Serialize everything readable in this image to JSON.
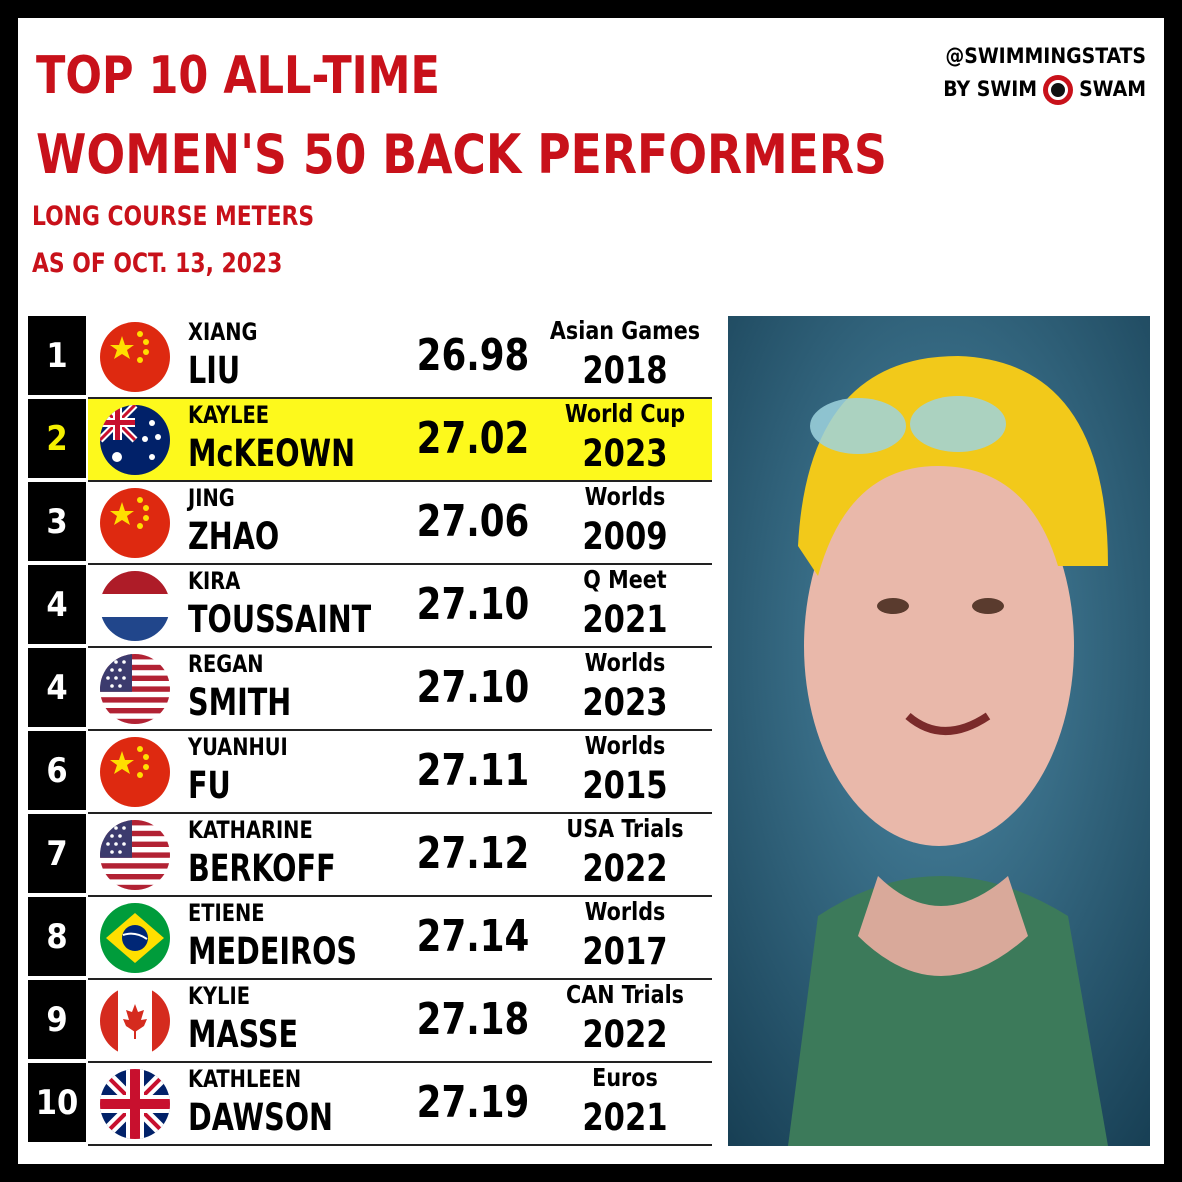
{
  "header": {
    "title_line1": "TOP 10 ALL-TIME",
    "title_line2": "WOMEN'S 50 BACK PERFORMERS",
    "subtitle1": "LONG COURSE METERS",
    "subtitle2": "AS OF OCT. 13, 2023",
    "brand_handle": "@SWIMMINGSTATS",
    "brand_by": "BY SWIM",
    "brand_swam": "SWAM"
  },
  "colors": {
    "accent": "#c8111a",
    "highlight": "#fdf91c"
  },
  "rows": [
    {
      "rank": "1",
      "first": "XIANG",
      "last": "LIU",
      "time": "26.98",
      "meet": "Asian Games",
      "year": "2018",
      "flag": "china"
    },
    {
      "rank": "2",
      "first": "KAYLEE",
      "last": "McKEOWN",
      "time": "27.02",
      "meet": "World Cup",
      "year": "2023",
      "flag": "australia"
    },
    {
      "rank": "3",
      "first": "JING",
      "last": "ZHAO",
      "time": "27.06",
      "meet": "Worlds",
      "year": "2009",
      "flag": "china"
    },
    {
      "rank": "4",
      "first": "KIRA",
      "last": "TOUSSAINT",
      "time": "27.10",
      "meet": "Q Meet",
      "year": "2021",
      "flag": "netherlands"
    },
    {
      "rank": "4",
      "first": "REGAN",
      "last": "SMITH",
      "time": "27.10",
      "meet": "Worlds",
      "year": "2023",
      "flag": "usa"
    },
    {
      "rank": "6",
      "first": "YUANHUI",
      "last": "FU",
      "time": "27.11",
      "meet": "Worlds",
      "year": "2015",
      "flag": "china"
    },
    {
      "rank": "7",
      "first": "KATHARINE",
      "last": "BERKOFF",
      "time": "27.12",
      "meet": "USA Trials",
      "year": "2022",
      "flag": "usa"
    },
    {
      "rank": "8",
      "first": "ETIENE",
      "last": "MEDEIROS",
      "time": "27.14",
      "meet": "Worlds",
      "year": "2017",
      "flag": "brazil"
    },
    {
      "rank": "9",
      "first": "KYLIE",
      "last": "MASSE",
      "time": "27.18",
      "meet": "CAN Trials",
      "year": "2022",
      "flag": "canada"
    },
    {
      "rank": "10",
      "first": "KATHLEEN",
      "last": "DAWSON",
      "time": "27.19",
      "meet": "Euros",
      "year": "2021",
      "flag": "uk"
    }
  ]
}
